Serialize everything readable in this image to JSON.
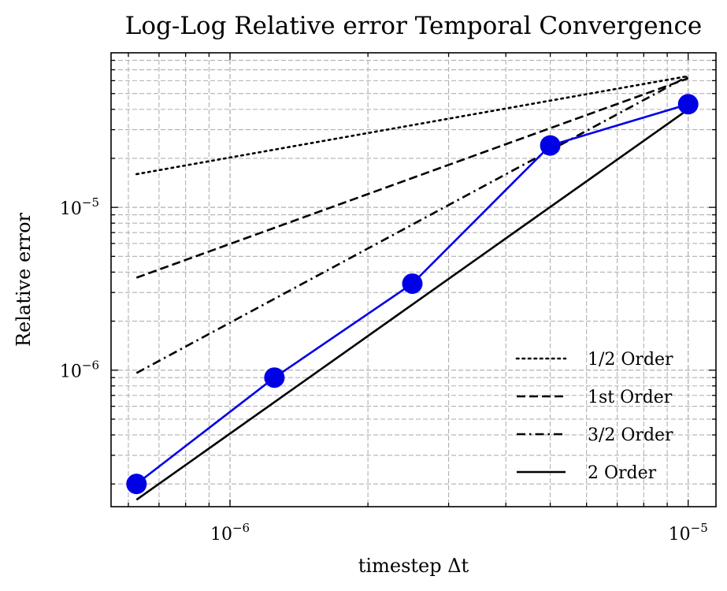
{
  "chart_data": {
    "type": "line",
    "title": "Log-Log Relative error Temporal Convergence",
    "xlabel": "timestep Δt",
    "ylabel": "Relative error",
    "xscale": "log",
    "yscale": "log",
    "xlim": [
      5.5e-07,
      1.15e-05
    ],
    "ylim": [
      1.45e-07,
      8.9e-05
    ],
    "grid": true,
    "legend_loc": "lower right",
    "x_ticks": [
      {
        "value": 1e-06,
        "base": "10",
        "exp": "−6"
      },
      {
        "value": 1e-05,
        "base": "10",
        "exp": "−5"
      }
    ],
    "y_ticks": [
      {
        "value": 1e-06,
        "base": "10",
        "exp": "−6"
      },
      {
        "value": 1e-05,
        "base": "10",
        "exp": "−5"
      }
    ],
    "series": [
      {
        "name": "",
        "color": "#0000e6",
        "style": "solid",
        "markers": true,
        "x": [
          6.25e-07,
          1.25e-06,
          2.5e-06,
          5e-06,
          1e-05
        ],
        "y": [
          2e-07,
          9e-07,
          3.4e-06,
          2.4e-05,
          4.3e-05
        ]
      },
      {
        "name": "1/2 Order",
        "color": "#000000",
        "style": "dotted",
        "x": [
          6.25e-07,
          1e-05
        ],
        "y": [
          1.6e-05,
          6.4e-05
        ]
      },
      {
        "name": "1st Order",
        "color": "#000000",
        "style": "dashed",
        "x": [
          6.25e-07,
          1e-05
        ],
        "y": [
          3.7e-06,
          6.2e-05
        ]
      },
      {
        "name": "3/2 Order",
        "color": "#000000",
        "style": "dashdot",
        "x": [
          6.25e-07,
          1e-05
        ],
        "y": [
          9.6e-07,
          6.4e-05
        ]
      },
      {
        "name": "2 Order",
        "color": "#000000",
        "style": "solid",
        "x": [
          6.25e-07,
          1e-05
        ],
        "y": [
          1.6e-07,
          4e-05
        ]
      }
    ]
  }
}
